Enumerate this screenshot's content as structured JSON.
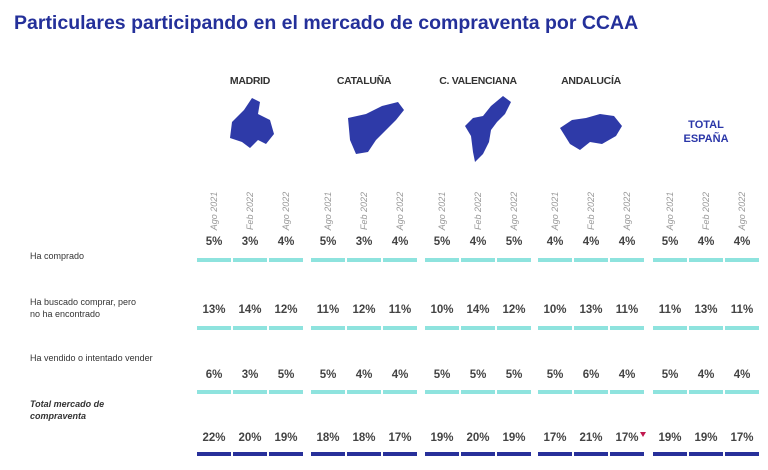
{
  "title": "Particulares participando en el mercado de compraventa por CCAA",
  "colors": {
    "title": "#24309a",
    "map": "#2e3aa8",
    "bar_light": "#8ee3de",
    "bar_dark": "#28309a",
    "marker": "#c0184f"
  },
  "chart_data": {
    "type": "table",
    "title": "Particulares participando en el mercado de compraventa por CCAA",
    "groups": [
      "MADRID",
      "CATALUÑA",
      "C. VALENCIANA",
      "ANDALUCÍA",
      "TOTAL ESPAÑA"
    ],
    "periods": [
      "Ago 2021",
      "Feb 2022",
      "Ago 2022"
    ],
    "rows": [
      {
        "label": "Ha comprado",
        "values": [
          [
            5,
            3,
            4
          ],
          [
            5,
            3,
            4
          ],
          [
            5,
            4,
            5
          ],
          [
            4,
            4,
            4
          ],
          [
            5,
            4,
            4
          ]
        ]
      },
      {
        "label": "Ha buscado comprar, pero no ha encontrado",
        "values": [
          [
            13,
            14,
            12
          ],
          [
            11,
            12,
            11
          ],
          [
            10,
            14,
            12
          ],
          [
            10,
            13,
            11
          ],
          [
            11,
            13,
            11
          ]
        ]
      },
      {
        "label": "Ha vendido o intentado vender",
        "values": [
          [
            6,
            3,
            5
          ],
          [
            5,
            4,
            4
          ],
          [
            5,
            5,
            5
          ],
          [
            5,
            6,
            4
          ],
          [
            5,
            4,
            4
          ]
        ]
      },
      {
        "label": "Total mercado de compraventa",
        "values": [
          [
            22,
            20,
            19
          ],
          [
            18,
            18,
            17
          ],
          [
            19,
            20,
            19
          ],
          [
            17,
            21,
            17
          ],
          [
            19,
            19,
            17
          ]
        ]
      }
    ],
    "unit": "%",
    "annotations": [
      {
        "row": "Total mercado de compraventa",
        "group": "ANDALUCÍA",
        "period": "Ago 2022",
        "mark": "down-triangle"
      }
    ]
  }
}
